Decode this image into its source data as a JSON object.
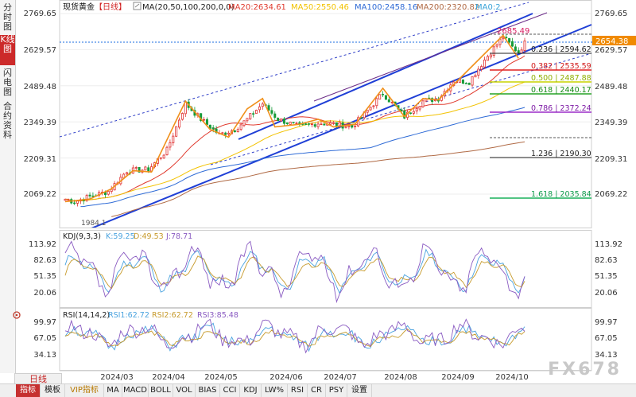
{
  "left_tabs": [
    {
      "label": "分时图",
      "active": false
    },
    {
      "label": "K线图",
      "active": true
    },
    {
      "label": "闪电图",
      "active": false
    },
    {
      "label": "合约资料",
      "active": false
    }
  ],
  "period_tab": "日线",
  "bottom_tabs": [
    {
      "label": "指标",
      "active": true,
      "vip": false
    },
    {
      "label": "模板",
      "active": false,
      "vip": false
    },
    {
      "label": "VIP指标",
      "active": false,
      "vip": true
    },
    {
      "label": "MA",
      "active": false,
      "vip": false
    },
    {
      "label": "MACD",
      "active": false,
      "vip": false
    },
    {
      "label": "BOLL",
      "active": false,
      "vip": false
    },
    {
      "label": "VOL",
      "active": false,
      "vip": false
    },
    {
      "label": "BIAS",
      "active": false,
      "vip": false
    },
    {
      "label": "CCI",
      "active": false,
      "vip": false
    },
    {
      "label": "KDJ",
      "active": false,
      "vip": false
    },
    {
      "label": "LW%",
      "active": false,
      "vip": false
    },
    {
      "label": "RSI",
      "active": false,
      "vip": false
    },
    {
      "label": "CR",
      "active": false,
      "vip": false
    },
    {
      "label": "PSY",
      "active": false,
      "vip": false
    },
    {
      "label": "设置",
      "active": false,
      "vip": false
    }
  ],
  "watermark": "FX678",
  "chart_data": {
    "type": "candlestick",
    "title": "现货黄金",
    "period_label": "【日线】",
    "x_labels": [
      "2024/03",
      "2024/04",
      "2024/05",
      "2024/06",
      "2024/07",
      "2024/08",
      "2024/09",
      "2024/10"
    ],
    "price_panel": {
      "y_ticks": [
        "2769.65",
        "2629.57",
        "2489.48",
        "2349.39",
        "2209.31",
        "2069.22"
      ],
      "y_range": [
        1990,
        2790
      ],
      "ma_header": "MA(20,50,100,200,0,0)",
      "ma_values": [
        {
          "label": "MA20:2634.61",
          "color": "#e0392d"
        },
        {
          "label": "MA50:2550.46",
          "color": "#f2c200"
        },
        {
          "label": "MA100:2458.16",
          "color": "#2f6bd6"
        },
        {
          "label": "MA200:2320.82",
          "color": "#b06a45"
        },
        {
          "label": "MA0:2",
          "color": "#3aa3d8"
        }
      ],
      "current_price": "2654.38",
      "high_label": "2685.49",
      "low_label": "1984.1",
      "fib_levels": [
        {
          "label": "0.236 | 2594.62",
          "value": 2594.62,
          "color": "#222222",
          "text_color": "#222222"
        },
        {
          "label": "0.382 | 2535.59",
          "value": 2535.59,
          "color": "#e02020",
          "text_color": "#d01818"
        },
        {
          "label": "0.500 | 2487.88",
          "value": 2487.88,
          "color": "#c8d400",
          "text_color": "#8fae00"
        },
        {
          "label": "0.618 | 2440.17",
          "value": 2440.17,
          "color": "#27a327",
          "text_color": "#168a16"
        },
        {
          "label": "0.786 | 2372.24",
          "value": 2372.24,
          "color": "#9b2bc8",
          "text_color": "#7d1aa5"
        },
        {
          "label": "1.236 | 2190.30",
          "value": 2190.3,
          "color": "#222222",
          "text_color": "#222222"
        },
        {
          "label": "1.618 | 2035.84",
          "value": 2035.84,
          "color": "#18b05a",
          "text_color": "#0c9a4a"
        }
      ]
    },
    "kdj_panel": {
      "header": "KDJ(9,3,3)",
      "values": [
        {
          "label": "K:59.25",
          "color": "#4aa3df"
        },
        {
          "label": "D:49.53",
          "color": "#c79b2d"
        },
        {
          "label": "J:78.71",
          "color": "#8a5bc2"
        }
      ],
      "y_ticks": [
        "113.92",
        "82.63",
        "51.35",
        "20.06"
      ],
      "y_range": [
        5,
        125
      ]
    },
    "rsi_panel": {
      "header": "RSI(14,14,2)",
      "values": [
        {
          "label": "RSI1:62.72",
          "color": "#4aa3df"
        },
        {
          "label": "RSI2:62.72",
          "color": "#c79b2d"
        },
        {
          "label": "RSI3:85.48",
          "color": "#8a5bc2"
        }
      ],
      "y_ticks": [
        "99.97",
        "67.05",
        "34.13"
      ],
      "y_range": [
        5,
        120
      ]
    },
    "colors": {
      "up": "#e03131",
      "down": "#169b39",
      "zigzag": "#f0901a",
      "channel": "#1f3fd6",
      "dashed": "#2f3fc8",
      "purple_line": "#6b2c88"
    }
  }
}
